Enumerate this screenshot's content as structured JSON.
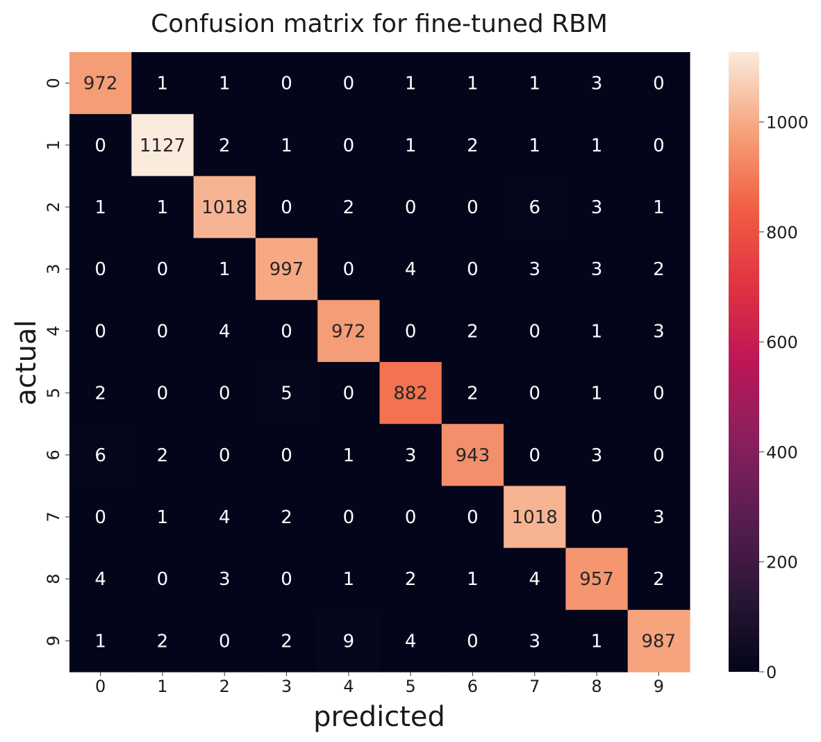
{
  "chart_data": {
    "type": "heatmap",
    "title": "Confusion matrix for fine-tuned RBM",
    "xlabel": "predicted",
    "ylabel": "actual",
    "x_categories": [
      "0",
      "1",
      "2",
      "3",
      "4",
      "5",
      "6",
      "7",
      "8",
      "9"
    ],
    "y_categories": [
      "0",
      "1",
      "2",
      "3",
      "4",
      "5",
      "6",
      "7",
      "8",
      "9"
    ],
    "matrix": [
      [
        972,
        1,
        1,
        0,
        0,
        1,
        1,
        1,
        3,
        0
      ],
      [
        0,
        1127,
        2,
        1,
        0,
        1,
        2,
        1,
        1,
        0
      ],
      [
        1,
        1,
        1018,
        0,
        2,
        0,
        0,
        6,
        3,
        1
      ],
      [
        0,
        0,
        1,
        997,
        0,
        4,
        0,
        3,
        3,
        2
      ],
      [
        0,
        0,
        4,
        0,
        972,
        0,
        2,
        0,
        1,
        3
      ],
      [
        2,
        0,
        0,
        5,
        0,
        882,
        2,
        0,
        1,
        0
      ],
      [
        6,
        2,
        0,
        0,
        1,
        3,
        943,
        0,
        3,
        0
      ],
      [
        0,
        1,
        4,
        2,
        0,
        0,
        0,
        1018,
        0,
        3
      ],
      [
        4,
        0,
        3,
        0,
        1,
        2,
        1,
        4,
        957,
        2
      ],
      [
        1,
        2,
        0,
        2,
        9,
        4,
        0,
        3,
        1,
        987
      ]
    ],
    "colorbar": {
      "colormap": "rocket",
      "vmin": 0,
      "vmax": 1127,
      "ticks": [
        0,
        200,
        400,
        600,
        800,
        1000
      ]
    }
  }
}
